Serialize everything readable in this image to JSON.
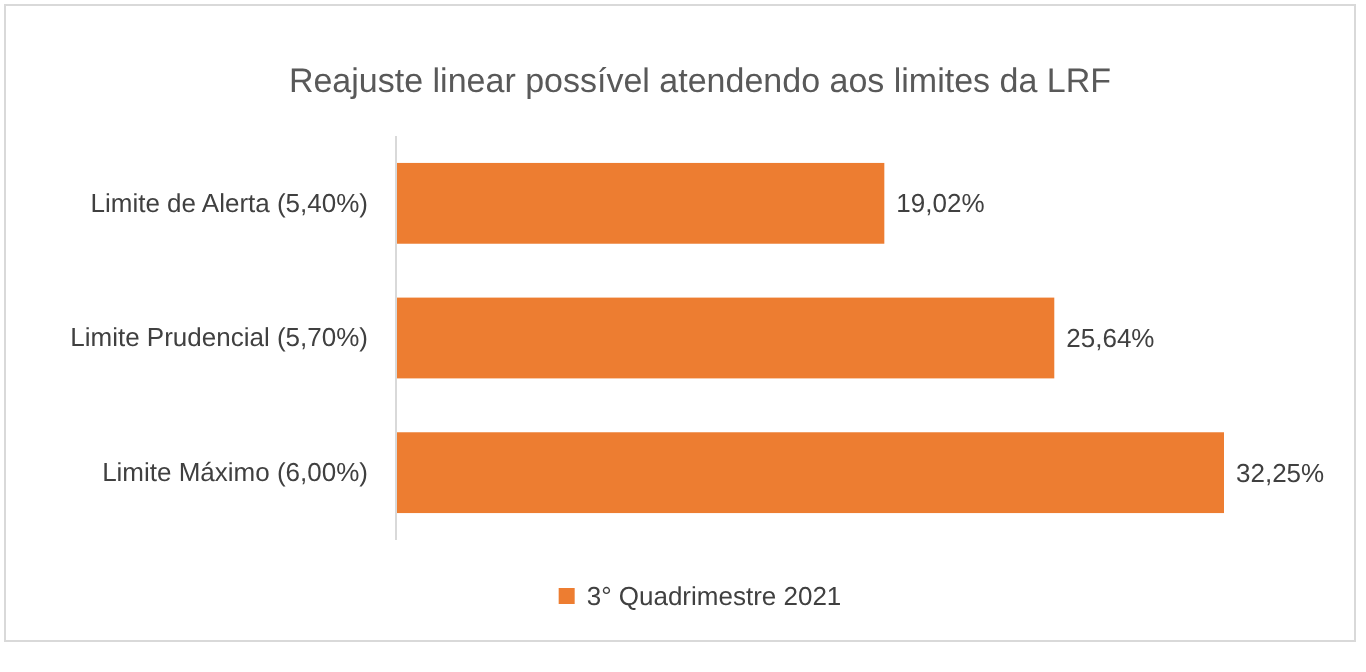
{
  "chart_data": {
    "type": "bar",
    "orientation": "horizontal",
    "title": "Reajuste linear possível atendendo aos limites da LRF",
    "categories": [
      "Limite de Alerta (5,40%)",
      "Limite Prudencial (5,70%)",
      "Limite Máximo (6,00%)"
    ],
    "series": [
      {
        "name": "3° Quadrimestre 2021",
        "color": "#ed7d31",
        "values": [
          19.02,
          25.64,
          32.25
        ],
        "value_labels": [
          "19,02%",
          "25,64%",
          "32,25%"
        ]
      }
    ],
    "legend": "bottom"
  }
}
